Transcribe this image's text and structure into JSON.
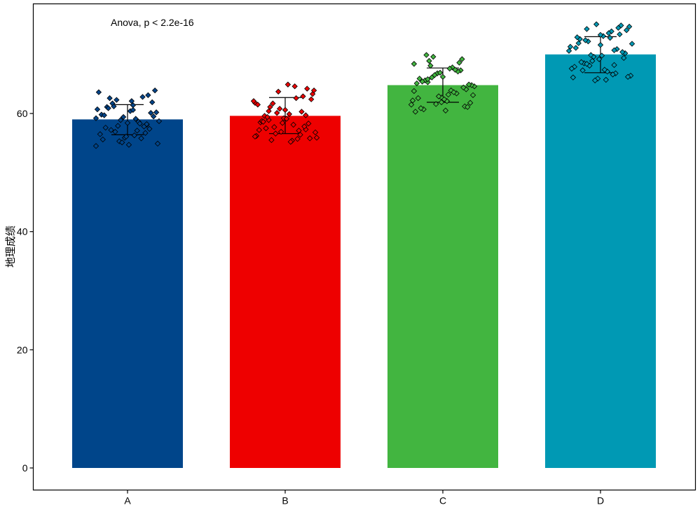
{
  "chart_data": {
    "type": "bar",
    "title": "",
    "xlabel": "",
    "ylabel": "地理成绩",
    "annotation": "Anova, p < 2.2e-16",
    "categories": [
      "A",
      "B",
      "C",
      "D"
    ],
    "values": [
      59.0,
      59.6,
      64.8,
      70.0
    ],
    "error_low": [
      56.4,
      56.6,
      61.9,
      66.9
    ],
    "error_high": [
      61.5,
      62.7,
      67.7,
      73.0
    ],
    "colors": [
      "#00458A",
      "#EE0000",
      "#42B540",
      "#0099B4"
    ],
    "ylim": [
      0,
      76.5
    ],
    "yticks": [
      0,
      20,
      40,
      60
    ],
    "grid": false,
    "legend": "none",
    "points": [
      [
        59.2,
        58.1,
        61.4,
        55.3,
        57.6,
        60.2,
        62.8,
        54.7,
        56.9,
        59.8,
        61.9,
        58.6,
        55.9,
        57.2,
        60.7,
        63.1,
        56.3,
        58.9,
        61.1,
        54.9,
        57.8,
        60.4,
        62.3,
        55.6,
        59.5,
        58.3,
        56.1,
        61.7,
        63.6,
        57.4,
        59.1,
        55.1,
        60.9,
        58.7,
        56.7,
        62.1,
        57.9,
        59.7,
        63.9,
        55.8,
        58.4,
        61.2,
        56.5,
        60.1,
        57.1,
        59.4,
        62.6,
        54.5,
        58.2,
        60.6
      ],
      [
        58.9,
        61.8,
        57.3,
        55.4,
        63.7,
        59.6,
        56.8,
        60.3,
        64.9,
        57.7,
        58.5,
        62.4,
        55.7,
        59.2,
        61.1,
        56.2,
        64.2,
        58.1,
        60.8,
        57.5,
        55.9,
        62.9,
        59.9,
        56.6,
        58.7,
        63.3,
        57.1,
        60.6,
        55.5,
        61.5,
        58.3,
        64.6,
        56.9,
        59.4,
        62.1,
        57.8,
        55.2,
        60.1,
        58.6,
        63.9,
        56.4,
        59.1,
        61.7,
        57.2,
        55.8,
        62.6,
        58.4,
        60.4,
        56.1,
        59.7
      ],
      [
        62.7,
        65.3,
        68.4,
        61.2,
        63.9,
        66.8,
        60.7,
        64.6,
        67.3,
        62.1,
        69.6,
        65.9,
        61.8,
        63.4,
        66.2,
        68.9,
        60.3,
        64.1,
        67.8,
        62.9,
        65.6,
        61.5,
        69.2,
        63.2,
        66.5,
        60.9,
        64.8,
        67.1,
        62.4,
        68.1,
        65.1,
        61.1,
        63.6,
        66.9,
        69.9,
        62.2,
        64.4,
        67.6,
        61.6,
        65.4,
        63.1,
        68.6,
        60.5,
        66.1,
        62.6,
        64.9,
        67.4,
        61.9,
        65.8,
        63.8
      ],
      [
        68.2,
        71.6,
        74.3,
        66.1,
        69.4,
        72.8,
        75.1,
        67.3,
        70.6,
        73.4,
        65.7,
        68.9,
        71.9,
        74.7,
        66.8,
        69.8,
        72.2,
        67.9,
        70.2,
        73.9,
        65.9,
        68.5,
        71.3,
        74.9,
        67.1,
        69.6,
        72.6,
        66.4,
        70.9,
        73.1,
        68.1,
        71.1,
        74.1,
        66.6,
        69.2,
        72.4,
        67.6,
        70.4,
        73.6,
        65.6,
        68.7,
        71.8,
        74.5,
        67.4,
        69.9,
        72.9,
        66.2,
        70.7,
        73.3,
        68.4
      ]
    ]
  }
}
